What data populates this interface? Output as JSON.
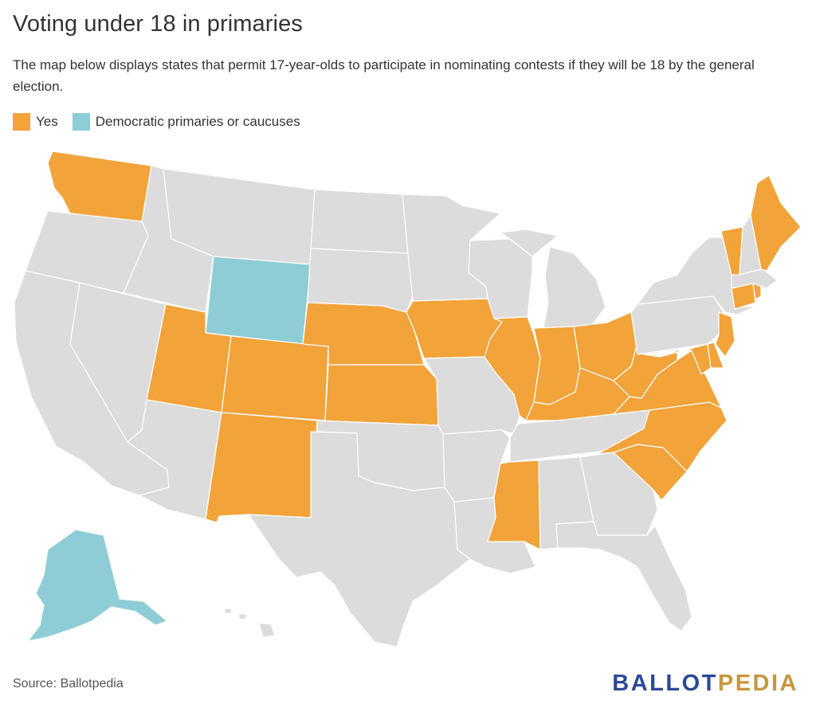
{
  "title": "Voting under 18 in primaries",
  "subtitle": "The map below displays states that permit 17-year-olds to participate in nominating contests if they will be 18 by the general election.",
  "legend": [
    {
      "label": "Yes",
      "color": "#F2A33A"
    },
    {
      "label": "Democratic primaries or caucuses",
      "color": "#8ECDD6"
    }
  ],
  "colors": {
    "yes": "#F2A33A",
    "dem": "#8ECDD6",
    "none": "#DCDCDC",
    "border": "#FFFFFF"
  },
  "map_data": {
    "yes": [
      "WA",
      "UT",
      "CO",
      "NM",
      "NE",
      "KS",
      "IA",
      "IL",
      "IN",
      "OH",
      "KY",
      "MS",
      "WV",
      "VA",
      "MD",
      "DE",
      "NC",
      "SC",
      "NJ",
      "CT",
      "RI",
      "VT",
      "ME"
    ],
    "democratic": [
      "WY",
      "AK"
    ]
  },
  "source": "Source: Ballotpedia",
  "logo": {
    "part1": "BALLOT",
    "part2": "PEDIA",
    "color1": "#2B4A97",
    "color2": "#C8963E"
  }
}
